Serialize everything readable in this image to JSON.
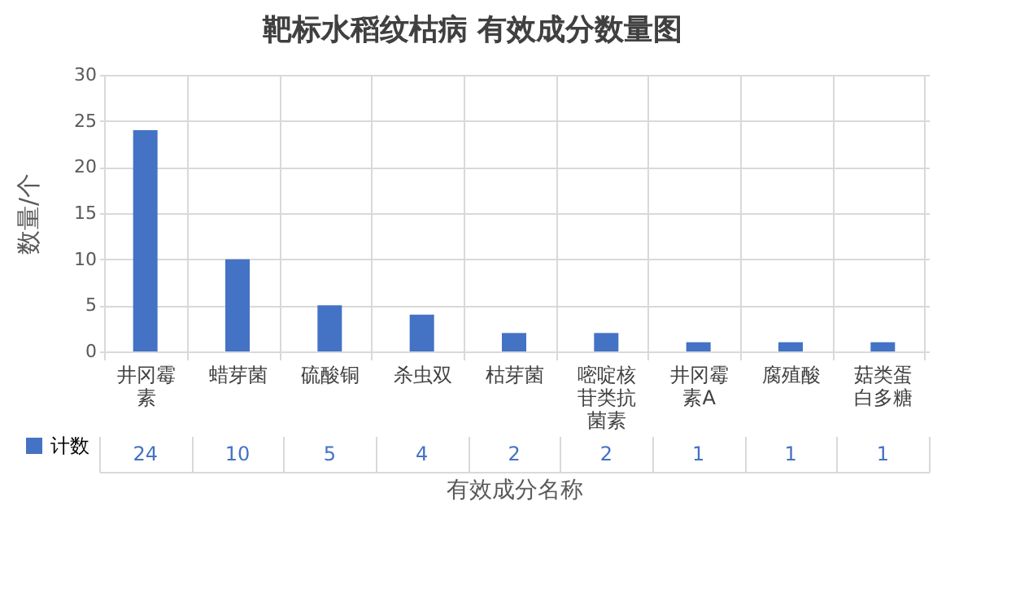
{
  "chart_data": {
    "type": "bar",
    "title": "靶标水稻纹枯病 有效成分数量图",
    "xlabel": "有效成分名称",
    "ylabel": "数量/个",
    "categories": [
      "井冈霉素",
      "蜡芽菌",
      "硫酸铜",
      "杀虫双",
      "枯芽菌",
      "嘧啶核苷类抗菌素",
      "井冈霉素A",
      "腐殖酸",
      "菇类蛋白多糖"
    ],
    "series": [
      {
        "name": "计数",
        "color": "#4472c4",
        "values": [
          24,
          10,
          5,
          4,
          2,
          2,
          1,
          1,
          1
        ]
      }
    ],
    "ylim": [
      0,
      30
    ],
    "yticks": [
      0,
      5,
      10,
      15,
      20,
      25,
      30
    ],
    "grid": "y",
    "legend": "bottom",
    "data_labels": true
  }
}
